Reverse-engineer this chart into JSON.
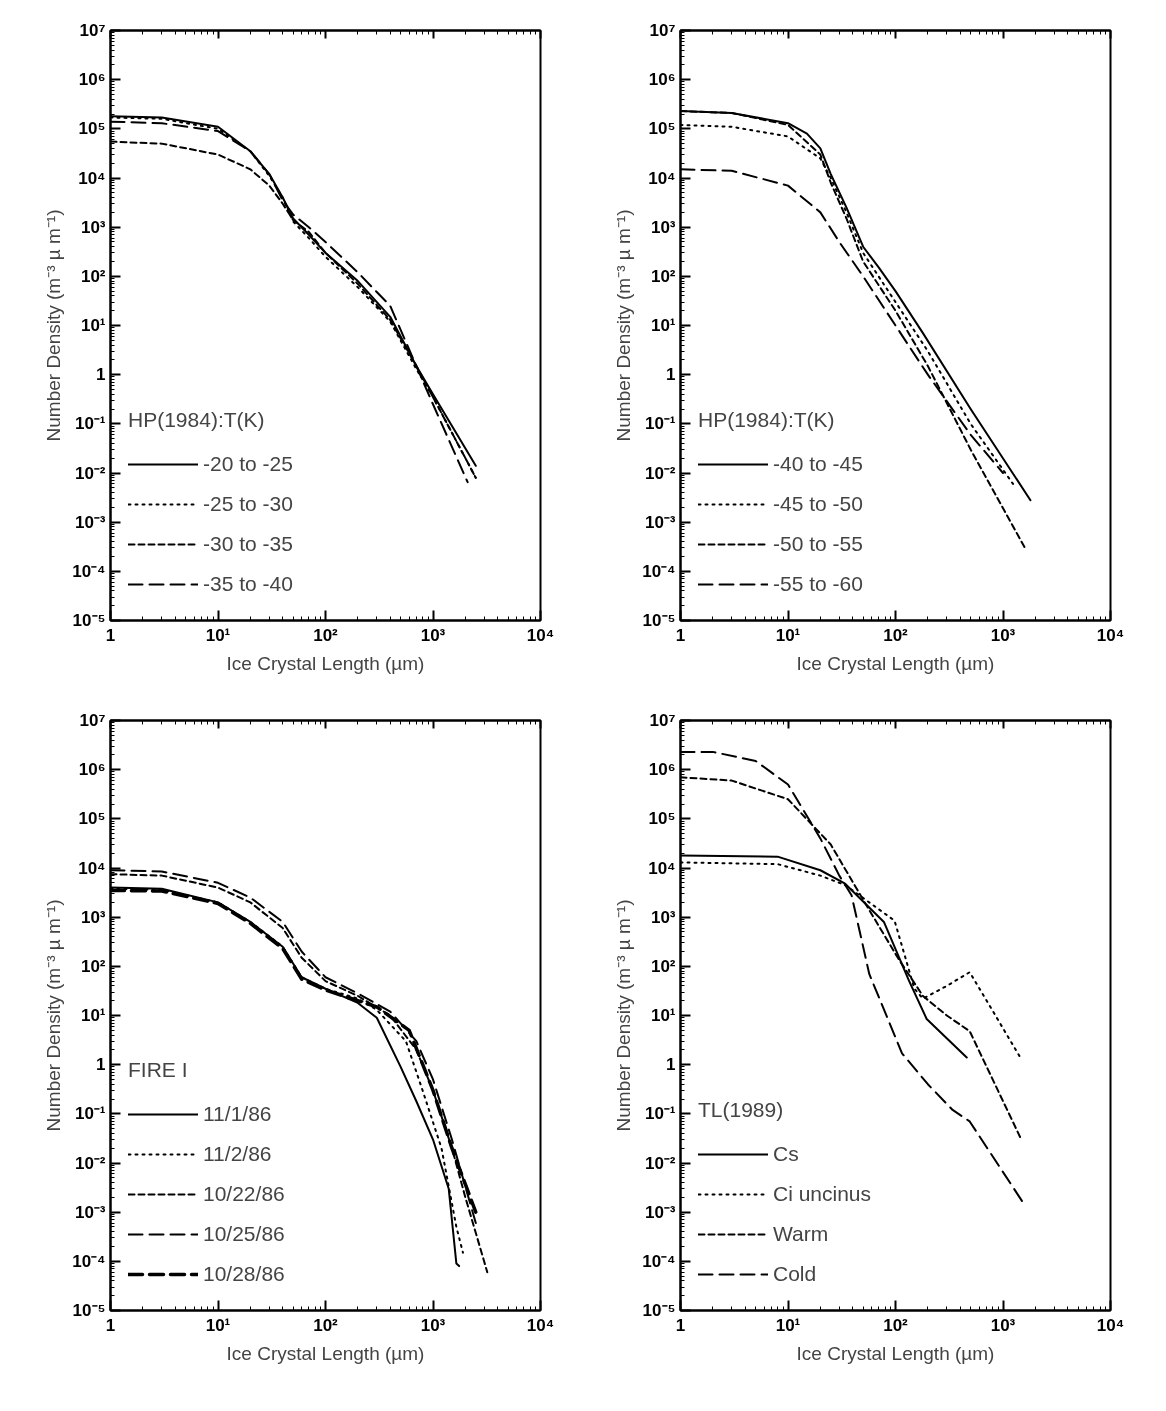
{
  "chart_data": [
    {
      "type": "line",
      "log": "xy",
      "xlabel": "Ice Crystal Length (µm)",
      "ylabel": "Number Density (m⁻³ µ m⁻¹)",
      "legend_title": "HP(1984):T(K)",
      "legend": "bottom left",
      "xlim": [
        1,
        10000
      ],
      "ylim": [
        1e-05,
        10000000.0
      ],
      "xticks": [
        {
          "value": 1,
          "label": "1"
        },
        {
          "value": 10,
          "label": "10¹"
        },
        {
          "value": 100,
          "label": "10²"
        },
        {
          "value": 1000,
          "label": "10³"
        },
        {
          "value": 10000,
          "label": "10⁴"
        }
      ],
      "yticks": [
        {
          "value": 1e-05,
          "label": "10⁻⁵"
        },
        {
          "value": 0.0001,
          "label": "10⁻⁴"
        },
        {
          "value": 0.001,
          "label": "10⁻³"
        },
        {
          "value": 0.01,
          "label": "10⁻²"
        },
        {
          "value": 0.1,
          "label": "10⁻¹"
        },
        {
          "value": 1,
          "label": "1"
        },
        {
          "value": 10,
          "label": "10¹"
        },
        {
          "value": 100,
          "label": "10²"
        },
        {
          "value": 1000,
          "label": "10³"
        },
        {
          "value": 10000,
          "label": "10⁴"
        },
        {
          "value": 100000,
          "label": "10⁵"
        },
        {
          "value": 1000000,
          "label": "10⁶"
        },
        {
          "value": 10000000,
          "label": "10⁷"
        }
      ],
      "series": [
        {
          "name": "-20 to -25",
          "color": "#000000",
          "line_style": "solid",
          "x": [
            1,
            3,
            10,
            20,
            30,
            40,
            50,
            70,
            100,
            200,
            400,
            700,
            1000,
            2500
          ],
          "values": [
            180000,
            170000,
            110000,
            35000,
            12000,
            4000,
            1500,
            700,
            300,
            80,
            15,
            1.5,
            0.4,
            0.014
          ]
        },
        {
          "name": "-25 to -30",
          "color": "#000000",
          "line_style": "dotted",
          "x": [
            1,
            3,
            10,
            20,
            30,
            40,
            50,
            70,
            100,
            200,
            400,
            700,
            1000,
            2500
          ],
          "values": [
            170000,
            160000,
            100000,
            35000,
            11000,
            4000,
            1300,
            600,
            250,
            60,
            12,
            1.3,
            0.35,
            0.008
          ]
        },
        {
          "name": "-30 to -35",
          "color": "#000000",
          "line_style": "dashed",
          "x": [
            1,
            3,
            10,
            20,
            30,
            40,
            50,
            70,
            100,
            200,
            400,
            700,
            1000,
            2500
          ],
          "values": [
            55000,
            50000,
            30000,
            15000,
            7000,
            3000,
            1400,
            800,
            300,
            70,
            13,
            1.5,
            0.35,
            0.008
          ]
        },
        {
          "name": "-35 to -40",
          "color": "#000000",
          "line_style": "long dashed",
          "x": [
            1,
            3,
            10,
            20,
            30,
            40,
            50,
            70,
            100,
            200,
            400,
            700,
            1000,
            2100
          ],
          "values": [
            140000,
            130000,
            90000,
            35000,
            12000,
            3500,
            1800,
            1000,
            500,
            120,
            25,
            1.5,
            0.25,
            0.0065
          ]
        }
      ]
    },
    {
      "type": "line",
      "log": "xy",
      "xlabel": "Ice Crystal Length (µm)",
      "ylabel": "Number Density (m⁻³ µ m⁻¹)",
      "legend_title": "HP(1984):T(K)",
      "legend": "bottom left",
      "xlim": [
        1,
        10000
      ],
      "ylim": [
        1e-05,
        10000000.0
      ],
      "xticks": [
        {
          "value": 1,
          "label": "1"
        },
        {
          "value": 10,
          "label": "10¹"
        },
        {
          "value": 100,
          "label": "10²"
        },
        {
          "value": 1000,
          "label": "10³"
        },
        {
          "value": 10000,
          "label": "10⁴"
        }
      ],
      "yticks": [
        {
          "value": 1e-05,
          "label": "10⁻⁵"
        },
        {
          "value": 0.0001,
          "label": "10⁻⁴"
        },
        {
          "value": 0.001,
          "label": "10⁻³"
        },
        {
          "value": 0.01,
          "label": "10⁻²"
        },
        {
          "value": 0.1,
          "label": "10⁻¹"
        },
        {
          "value": 1,
          "label": "1"
        },
        {
          "value": 10,
          "label": "10¹"
        },
        {
          "value": 100,
          "label": "10²"
        },
        {
          "value": 1000,
          "label": "10³"
        },
        {
          "value": 10000,
          "label": "10⁴"
        },
        {
          "value": 100000,
          "label": "10⁵"
        },
        {
          "value": 1000000,
          "label": "10⁶"
        },
        {
          "value": 10000000,
          "label": "10⁷"
        }
      ],
      "series": [
        {
          "name": "-40 to -45",
          "color": "#000000",
          "line_style": "solid",
          "x": [
            1,
            3,
            10,
            15,
            20,
            25,
            35,
            50,
            70,
            100,
            180,
            500,
            1800
          ],
          "values": [
            230000,
            210000,
            130000,
            80000,
            40000,
            12000,
            2500,
            400,
            150,
            50,
            7,
            0.2,
            0.0028
          ]
        },
        {
          "name": "-45 to -50",
          "color": "#000000",
          "line_style": "dotted",
          "x": [
            1,
            3,
            10,
            20,
            25,
            35,
            50,
            100,
            200,
            500,
            1240
          ],
          "values": [
            120000,
            110000,
            70000,
            25000,
            10000,
            2000,
            300,
            30,
            3,
            0.1,
            0.006
          ]
        },
        {
          "name": "-50 to -55",
          "color": "#000000",
          "line_style": "dashed",
          "x": [
            1,
            3,
            10,
            20,
            25,
            35,
            50,
            100,
            200,
            500,
            1600
          ],
          "values": [
            230000,
            210000,
            120000,
            30000,
            8000,
            1500,
            200,
            20,
            1.5,
            0.03,
            0.0003
          ]
        },
        {
          "name": "-55 to -60",
          "color": "#000000",
          "line_style": "long dashed",
          "x": [
            1,
            3,
            10,
            20,
            30,
            50,
            100,
            200,
            500,
            1000
          ],
          "values": [
            15000,
            14000,
            7000,
            2000,
            500,
            100,
            10,
            1,
            0.06,
            0.01
          ]
        }
      ]
    },
    {
      "type": "line",
      "log": "xy",
      "xlabel": "Ice Crystal Length (µm)",
      "ylabel": "Number Density (m⁻³ µ m⁻¹)",
      "legend_title": "FIRE I",
      "legend": "bottom left",
      "xlim": [
        1,
        10000
      ],
      "ylim": [
        1e-05,
        10000000.0
      ],
      "xticks": [
        {
          "value": 1,
          "label": "1"
        },
        {
          "value": 10,
          "label": "10¹"
        },
        {
          "value": 100,
          "label": "10²"
        },
        {
          "value": 1000,
          "label": "10³"
        },
        {
          "value": 10000,
          "label": "10⁴"
        }
      ],
      "yticks": [
        {
          "value": 1e-05,
          "label": "10⁻⁵"
        },
        {
          "value": 0.0001,
          "label": "10⁻⁴"
        },
        {
          "value": 0.001,
          "label": "10⁻³"
        },
        {
          "value": 0.01,
          "label": "10⁻²"
        },
        {
          "value": 0.1,
          "label": "10⁻¹"
        },
        {
          "value": 1,
          "label": "1"
        },
        {
          "value": 10,
          "label": "10¹"
        },
        {
          "value": 100,
          "label": "10²"
        },
        {
          "value": 1000,
          "label": "10³"
        },
        {
          "value": 10000,
          "label": "10⁴"
        },
        {
          "value": 100000,
          "label": "10⁵"
        },
        {
          "value": 1000000,
          "label": "10⁶"
        },
        {
          "value": 10000000,
          "label": "10⁷"
        }
      ],
      "series": [
        {
          "name": "11/1/86",
          "color": "#000000",
          "line_style": "solid",
          "x": [
            1,
            3,
            10,
            20,
            40,
            60,
            100,
            200,
            300,
            500,
            700,
            1000,
            1400,
            1650,
            1750
          ],
          "values": [
            4000,
            3800,
            2000,
            800,
            250,
            60,
            35,
            18,
            9,
            0.9,
            0.18,
            0.03,
            0.003,
            9e-05,
            8e-05
          ]
        },
        {
          "name": "11/2/86",
          "color": "#000000",
          "line_style": "dotted",
          "x": [
            1,
            3,
            10,
            20,
            40,
            60,
            100,
            200,
            300,
            560,
            800,
            1200,
            1650,
            1900
          ],
          "values": [
            3800,
            3600,
            2000,
            800,
            250,
            60,
            35,
            22,
            13,
            3,
            0.3,
            0.02,
            0.0005,
            0.00015
          ]
        },
        {
          "name": "10/22/86",
          "color": "#000000",
          "line_style": "dashed",
          "x": [
            1,
            3,
            10,
            20,
            40,
            60,
            100,
            200,
            400,
            700,
            1000,
            1500,
            2000,
            3200
          ],
          "values": [
            7500,
            7000,
            4000,
            2000,
            600,
            150,
            50,
            25,
            10,
            2,
            0.3,
            0.02,
            0.002,
            6e-05
          ]
        },
        {
          "name": "10/25/86",
          "color": "#000000",
          "line_style": "long dashed",
          "x": [
            1,
            3,
            10,
            20,
            40,
            60,
            100,
            200,
            400,
            700,
            1000,
            1500,
            2500
          ],
          "values": [
            9000,
            8500,
            5000,
            2500,
            800,
            200,
            60,
            28,
            12,
            3,
            0.5,
            0.03,
            0.0006
          ]
        },
        {
          "name": "10/28/86",
          "color": "#000000",
          "line_style": "heavy long dashed",
          "x": [
            1,
            3,
            10,
            20,
            40,
            60,
            100,
            200,
            300,
            600,
            1000,
            1500,
            2500
          ],
          "values": [
            3500,
            3400,
            1900,
            750,
            230,
            55,
            33,
            20,
            15,
            5,
            0.3,
            0.02,
            0.001
          ]
        }
      ]
    },
    {
      "type": "line",
      "log": "xy",
      "xlabel": "Ice Crystal Length (µm)",
      "ylabel": "Number Density (m⁻³ µ m⁻¹)",
      "legend_title": "TL(1989)",
      "legend": "bottom left",
      "xlim": [
        1,
        10000
      ],
      "ylim": [
        1e-05,
        10000000.0
      ],
      "xticks": [
        {
          "value": 1,
          "label": "1"
        },
        {
          "value": 10,
          "label": "10¹"
        },
        {
          "value": 100,
          "label": "10²"
        },
        {
          "value": 1000,
          "label": "10³"
        },
        {
          "value": 10000,
          "label": "10⁴"
        }
      ],
      "yticks": [
        {
          "value": 1e-05,
          "label": "10⁻⁵"
        },
        {
          "value": 0.0001,
          "label": "10⁻⁴"
        },
        {
          "value": 0.001,
          "label": "10⁻³"
        },
        {
          "value": 0.01,
          "label": "10⁻²"
        },
        {
          "value": 0.1,
          "label": "10⁻¹"
        },
        {
          "value": 1,
          "label": "1"
        },
        {
          "value": 10,
          "label": "10¹"
        },
        {
          "value": 100,
          "label": "10²"
        },
        {
          "value": 1000,
          "label": "10³"
        },
        {
          "value": 10000,
          "label": "10⁴"
        },
        {
          "value": 100000,
          "label": "10⁵"
        },
        {
          "value": 1000000,
          "label": "10⁶"
        },
        {
          "value": 10000000,
          "label": "10⁷"
        }
      ],
      "series": [
        {
          "name": "Cs",
          "color": "#000000",
          "line_style": "solid",
          "x": [
            1,
            8,
            20,
            34,
            78,
            134,
            195,
            460
          ],
          "values": [
            18000,
            17000,
            9000,
            4800,
            800,
            50,
            8.5,
            1.4
          ]
        },
        {
          "name": "Ci uncinus",
          "color": "#000000",
          "line_style": "dotted",
          "x": [
            1,
            8,
            20,
            34,
            98,
            150,
            180,
            300,
            490,
            1450
          ],
          "values": [
            13000,
            12000,
            7000,
            4500,
            850,
            35,
            22,
            40,
            76,
            1.4
          ]
        },
        {
          "name": "Warm",
          "color": "#000000",
          "line_style": "dashed",
          "x": [
            1,
            3,
            10,
            25,
            54,
            107,
            180,
            300,
            490,
            1480
          ],
          "values": [
            700000,
            600000,
            250000,
            30000,
            1700,
            140,
            25,
            10,
            4.8,
            0.03
          ]
        },
        {
          "name": "Cold",
          "color": "#000000",
          "line_style": "long dashed",
          "x": [
            1,
            2,
            5,
            10,
            20,
            30,
            39,
            57,
            115,
            200,
            340,
            490,
            1500
          ],
          "values": [
            2300000,
            2300000,
            1500000,
            500000,
            40000,
            7000,
            2800,
            70,
            1.7,
            0.4,
            0.12,
            0.07,
            0.0017
          ]
        }
      ]
    }
  ]
}
